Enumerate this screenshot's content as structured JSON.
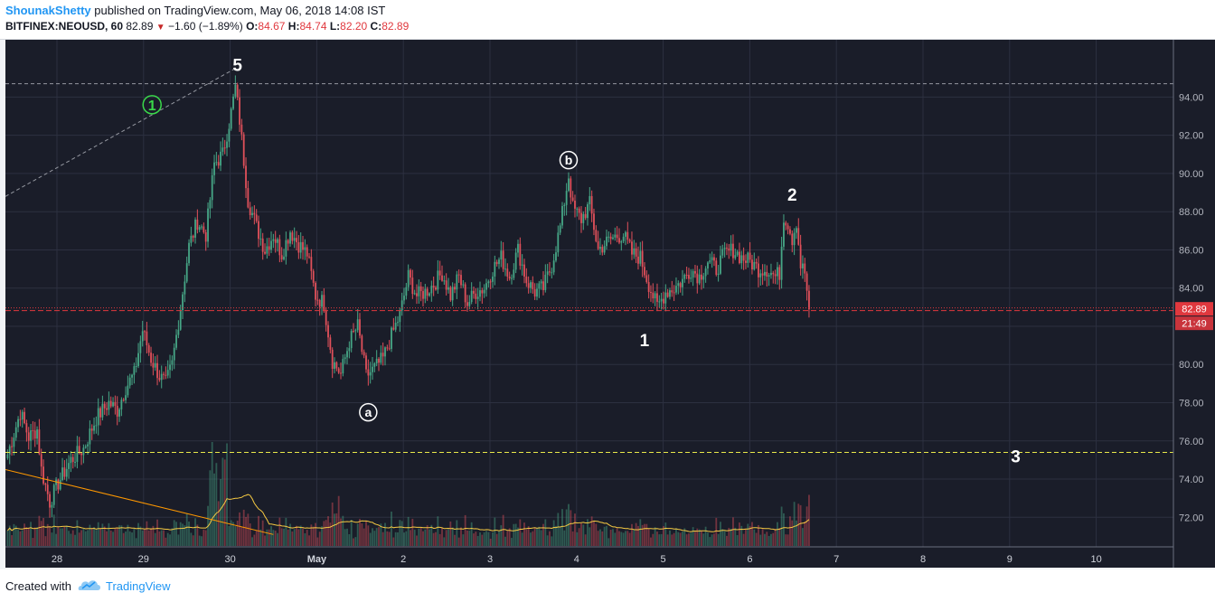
{
  "header": {
    "author": "ShounakShetty",
    "published": " published on TradingView.com, May 06, 2018 14:08 IST",
    "symbol": "BITFINEX:NEOUSD, 60",
    "last": "82.89",
    "change": "−1.60 (−1.89%)",
    "o_label": "O:",
    "o_val": "84.67",
    "h_label": "H:",
    "h_val": "84.74",
    "l_label": "L:",
    "l_val": "82.20",
    "c_label": "C:",
    "c_val": "82.89"
  },
  "footer": {
    "created": "Created with",
    "brand": "TradingView"
  },
  "colors": {
    "up": "#46a686",
    "down": "#e0505a",
    "background": "#1a1d29",
    "grid": "#2c3040",
    "volume_ma": "#f5c942",
    "trendline": "#ff9800",
    "price_line": "#e0383e",
    "level_line": "#e8e84a"
  },
  "chart_data": {
    "type": "candlestick",
    "ylim": [
      70.5,
      97
    ],
    "y_ticks": [
      "72.00",
      "74.00",
      "76.00",
      "78.00",
      "80.00",
      "82.00",
      "84.00",
      "86.00",
      "88.00",
      "90.00",
      "92.00",
      "94.00"
    ],
    "x_ticks": [
      "28",
      "29",
      "30",
      "May",
      "2",
      "3",
      "4",
      "5",
      "6",
      "7",
      "8",
      "9",
      "10"
    ],
    "last_price_label": "82.89",
    "countdown_label": "21:49",
    "waypoints": [
      [
        0,
        75.3
      ],
      [
        6,
        77.5
      ],
      [
        10,
        76.2
      ],
      [
        14,
        76.6
      ],
      [
        16,
        74.5
      ],
      [
        20,
        72.8
      ],
      [
        24,
        73.8
      ],
      [
        30,
        75.0
      ],
      [
        36,
        75.6
      ],
      [
        42,
        77.2
      ],
      [
        48,
        78.0
      ],
      [
        52,
        77.6
      ],
      [
        56,
        78.8
      ],
      [
        60,
        79.5
      ],
      [
        64,
        81.8
      ],
      [
        68,
        80.3
      ],
      [
        72,
        79.4
      ],
      [
        75,
        79.0
      ],
      [
        78,
        80.0
      ],
      [
        82,
        83.0
      ],
      [
        86,
        86.2
      ],
      [
        90,
        87.5
      ],
      [
        94,
        86.8
      ],
      [
        98,
        90.5
      ],
      [
        102,
        91.0
      ],
      [
        106,
        93.2
      ],
      [
        108,
        94.5
      ],
      [
        110,
        92.8
      ],
      [
        114,
        88.6
      ],
      [
        118,
        87.2
      ],
      [
        122,
        86.0
      ],
      [
        126,
        86.8
      ],
      [
        130,
        85.8
      ],
      [
        134,
        87.0
      ],
      [
        138,
        86.3
      ],
      [
        142,
        85.8
      ],
      [
        146,
        83.6
      ],
      [
        150,
        83.2
      ],
      [
        154,
        80.2
      ],
      [
        158,
        79.5
      ],
      [
        162,
        81.2
      ],
      [
        166,
        82.0
      ],
      [
        170,
        79.4
      ],
      [
        174,
        79.8
      ],
      [
        178,
        80.3
      ],
      [
        182,
        81.5
      ],
      [
        186,
        82.6
      ],
      [
        190,
        84.6
      ],
      [
        194,
        83.6
      ],
      [
        198,
        83.8
      ],
      [
        202,
        84.2
      ],
      [
        206,
        84.8
      ],
      [
        210,
        83.6
      ],
      [
        214,
        84.6
      ],
      [
        218,
        83.2
      ],
      [
        222,
        83.8
      ],
      [
        226,
        84.0
      ],
      [
        230,
        85.0
      ],
      [
        234,
        85.6
      ],
      [
        238,
        84.6
      ],
      [
        242,
        86.0
      ],
      [
        246,
        84.4
      ],
      [
        250,
        83.8
      ],
      [
        254,
        84.0
      ],
      [
        258,
        85.2
      ],
      [
        262,
        87.2
      ],
      [
        266,
        89.9
      ],
      [
        268,
        88.2
      ],
      [
        272,
        87.6
      ],
      [
        276,
        88.4
      ],
      [
        280,
        86.0
      ],
      [
        284,
        86.4
      ],
      [
        288,
        86.7
      ],
      [
        292,
        86.8
      ],
      [
        296,
        85.8
      ],
      [
        300,
        85.6
      ],
      [
        304,
        84.2
      ],
      [
        308,
        83.0
      ],
      [
        312,
        83.8
      ],
      [
        316,
        84.0
      ],
      [
        320,
        84.4
      ],
      [
        324,
        85.0
      ],
      [
        328,
        84.6
      ],
      [
        332,
        85.4
      ],
      [
        336,
        85.0
      ],
      [
        340,
        85.8
      ],
      [
        344,
        86.0
      ],
      [
        348,
        85.6
      ],
      [
        352,
        85.4
      ],
      [
        356,
        85.0
      ],
      [
        360,
        85.0
      ],
      [
        364,
        84.6
      ],
      [
        366,
        84.8
      ],
      [
        368,
        87.8
      ],
      [
        370,
        87.4
      ],
      [
        372,
        86.6
      ],
      [
        374,
        87.5
      ],
      [
        376,
        85.2
      ],
      [
        378,
        84.8
      ],
      [
        380,
        82.89
      ]
    ],
    "annotations": [
      {
        "text": "5",
        "x": 109,
        "y": 95.7,
        "style": "plain"
      },
      {
        "text": "1",
        "x": 68.5,
        "y": 93.6,
        "style": "green-circle"
      },
      {
        "text": "b",
        "x": 266,
        "y": 90.7,
        "style": "white-circle"
      },
      {
        "text": "2",
        "x": 372,
        "y": 88.9,
        "style": "plain"
      },
      {
        "text": "1",
        "x": 302,
        "y": 81.3,
        "style": "plain"
      },
      {
        "text": "a",
        "x": 171,
        "y": 77.5,
        "style": "white-circle"
      },
      {
        "text": "3",
        "x": 478,
        "y": 75.2,
        "style": "plain"
      }
    ]
  }
}
